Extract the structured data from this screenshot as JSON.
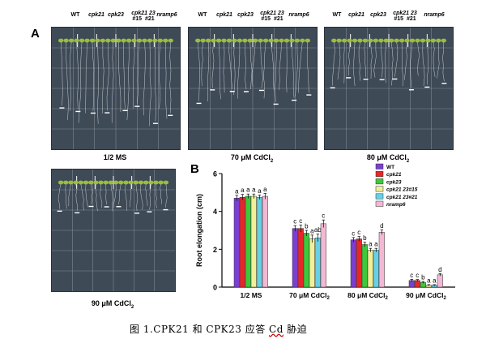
{
  "panels": {
    "a_letter": "A",
    "b_letter": "B"
  },
  "genotype_header": {
    "wt": "WT",
    "cpk21": "cpk21",
    "cpk23": "cpk23",
    "double": "cpk21 23",
    "line15": "#15",
    "line21": "#21",
    "nramp6": "nramp6"
  },
  "plates": [
    {
      "id": "ms",
      "caption_main": "1/2 MS",
      "caption_sub": "",
      "caption_tail": ""
    },
    {
      "id": "cd70",
      "caption_main": "70 μM CdCl",
      "caption_sub": "2",
      "caption_tail": ""
    },
    {
      "id": "cd80",
      "caption_main": "80 μM CdCl",
      "caption_sub": "2",
      "caption_tail": ""
    },
    {
      "id": "cd90",
      "caption_main": "90 μM CdCl",
      "caption_sub": "2",
      "caption_tail": ""
    }
  ],
  "figure_caption": {
    "prefix": "图 1.CPK21 和 CPK23 应答 ",
    "cd": "Cd",
    "suffix": " 胁迫"
  },
  "colors": {
    "plate_bg": "#3f4a57",
    "grid": "#9aa3ad",
    "leaf": "#9fc43a",
    "root": "#e8ecef"
  },
  "chart_data": {
    "type": "bar",
    "ylabel": "Root elongation (cm)",
    "xlabel": "",
    "ylim": [
      0,
      6
    ],
    "yticks": [
      0,
      2,
      4,
      6
    ],
    "categories": [
      "1/2 MS",
      "70 μM CdCl2",
      "80 μM CdCl2",
      "90 μM CdCl2"
    ],
    "legend_position": "top-right",
    "series": [
      {
        "name": "WT",
        "color": "#7a3fd1",
        "values": [
          4.7,
          3.1,
          2.5,
          0.35
        ],
        "errors": [
          0.15,
          0.15,
          0.12,
          0.06
        ],
        "letters": [
          "a",
          "c",
          "c",
          "c"
        ]
      },
      {
        "name": "cpk21",
        "color": "#e8262a",
        "values": [
          4.75,
          3.1,
          2.55,
          0.35
        ],
        "errors": [
          0.15,
          0.18,
          0.12,
          0.05
        ],
        "letters": [
          "a",
          "c",
          "c",
          "c"
        ]
      },
      {
        "name": "cpk23",
        "color": "#3ec93a",
        "values": [
          4.8,
          2.85,
          2.25,
          0.25
        ],
        "errors": [
          0.12,
          0.15,
          0.12,
          0.05
        ],
        "letters": [
          "a",
          "b",
          "b",
          "b"
        ]
      },
      {
        "name": "cpk21 23#15",
        "color": "#f2ef9a",
        "values": [
          4.8,
          2.55,
          1.95,
          0.1
        ],
        "errors": [
          0.12,
          0.2,
          0.1,
          0.03
        ],
        "letters": [
          "a",
          "a",
          "a",
          "a"
        ]
      },
      {
        "name": "cpk21 23#21",
        "color": "#66d1e6",
        "values": [
          4.75,
          2.6,
          1.95,
          0.1
        ],
        "errors": [
          0.12,
          0.2,
          0.1,
          0.03
        ],
        "letters": [
          "a",
          "ab",
          "a",
          "a"
        ]
      },
      {
        "name": "nramp6",
        "color": "#f3b8d4",
        "values": [
          4.8,
          3.35,
          2.9,
          0.65
        ],
        "errors": [
          0.15,
          0.2,
          0.12,
          0.06
        ],
        "letters": [
          "a",
          "c",
          "d",
          "d"
        ]
      }
    ],
    "legend_labels_italic": [
      false,
      true,
      true,
      true,
      true,
      true
    ]
  }
}
